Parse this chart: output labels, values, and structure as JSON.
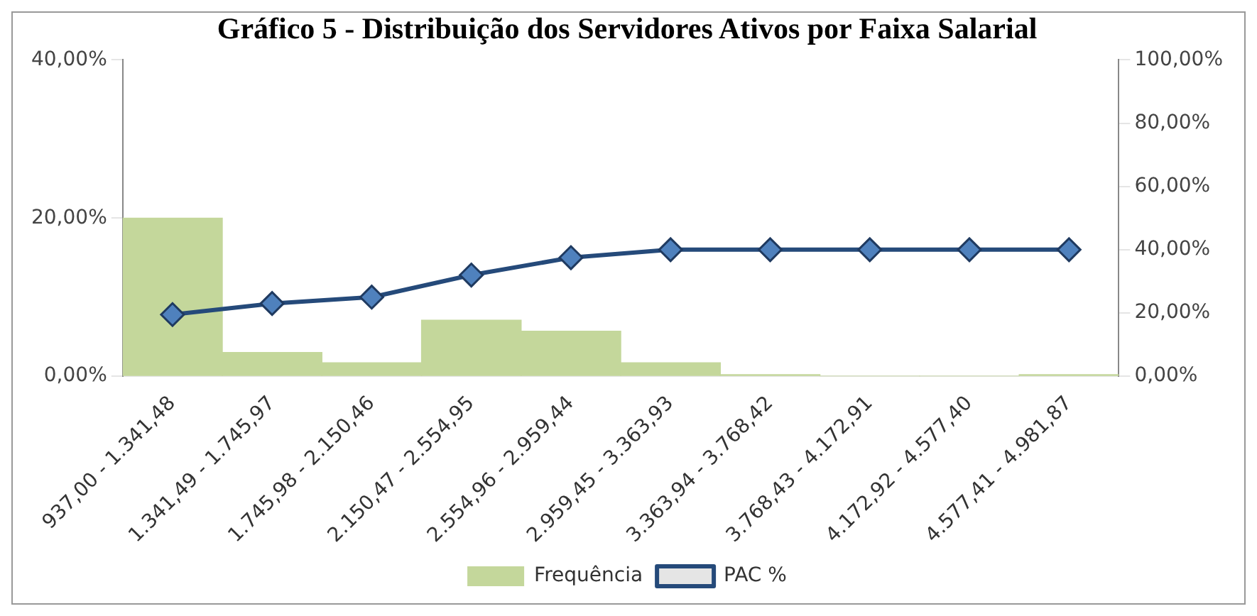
{
  "chart_data": {
    "type": "bar",
    "title": "Gráfico 5 - Distribuição dos Servidores Ativos por Faixa Salarial",
    "categories": [
      "937,00 - 1.341,48",
      "1.341,49 - 1.745,97",
      "1.745,98 - 2.150,46",
      "2.150,47 - 2.554,95",
      "2.554,96 - 2.959,44",
      "2.959,45 - 3.363,93",
      "3.363,94 - 3.768,42",
      "3.768,43 - 4.172,91",
      "4.172,92 - 4.577,40",
      "4.577,41 - 4.981,87"
    ],
    "series": [
      {
        "name": "Frequência",
        "color": "#c4d79b",
        "values": [
          20,
          3,
          1.7,
          7.1,
          5.7,
          1.7,
          0.2,
          0,
          0,
          0.2
        ]
      },
      {
        "name": "PAC %",
        "type": "line",
        "axis": "y2",
        "color": "#4f81bd",
        "marker": "diamond",
        "values": [
          19.5,
          23,
          25,
          32,
          37.5,
          40,
          40,
          40,
          40,
          40
        ]
      }
    ],
    "ylim": [
      0,
      40
    ],
    "yticks": [
      {
        "value": 0,
        "label": "0,00%"
      },
      {
        "value": 20,
        "label": "20,00%"
      },
      {
        "value": 40,
        "label": "40,00%"
      }
    ],
    "y2lim": [
      0,
      100
    ],
    "y2ticks": [
      {
        "value": 0,
        "label": "0,00%"
      },
      {
        "value": 20,
        "label": "20,00%"
      },
      {
        "value": 40,
        "label": "40,00%"
      },
      {
        "value": 60,
        "label": "60,00%"
      },
      {
        "value": 80,
        "label": "80,00%"
      },
      {
        "value": 100,
        "label": "100,00%"
      }
    ],
    "grid": false,
    "legend": "bottom"
  }
}
